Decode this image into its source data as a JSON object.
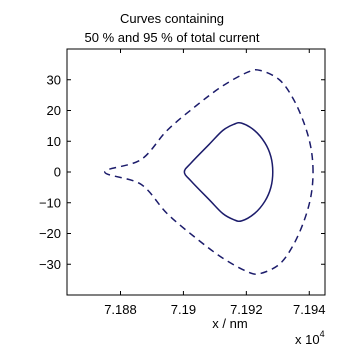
{
  "chart_data": {
    "type": "line",
    "title": [
      "Curves containing",
      "50 % and 95 % of total current"
    ],
    "xlabel": "x / nm",
    "ylabel": "",
    "x_multiplier_text": "x 10",
    "x_multiplier_exp": "4",
    "x_units_scale": 10000,
    "xlim": [
      7.1863,
      7.1945
    ],
    "ylim": [
      -40,
      40
    ],
    "xticks": [
      7.188,
      7.19,
      7.192,
      7.194
    ],
    "xtick_labels": [
      "7.188",
      "7.19",
      "7.192",
      "7.194"
    ],
    "yticks": [
      30,
      20,
      10,
      0,
      -10,
      -20,
      -30
    ],
    "ytick_labels": [
      "30",
      "20",
      "10",
      "0",
      "−10",
      "−20",
      "−30"
    ],
    "grid": false,
    "legend": "none",
    "colors": {
      "series": "#1c1c6b",
      "frame": "#000000"
    },
    "series": [
      {
        "style": "solid",
        "points": [
          [
            7.19284,
            0
          ],
          [
            7.19278,
            5
          ],
          [
            7.19259,
            9.5
          ],
          [
            7.19226,
            13.5
          ],
          [
            7.19185,
            15.9
          ],
          [
            7.1916,
            15.5
          ],
          [
            7.19125,
            13.5
          ],
          [
            7.19082,
            9
          ],
          [
            7.19025,
            3
          ],
          [
            7.19003,
            0
          ],
          [
            7.19025,
            -3
          ],
          [
            7.19082,
            -9
          ],
          [
            7.19125,
            -13.5
          ],
          [
            7.1916,
            -15.5
          ],
          [
            7.19185,
            -15.9
          ],
          [
            7.19226,
            -13.5
          ],
          [
            7.19259,
            -9.5
          ],
          [
            7.19278,
            -5
          ],
          [
            7.19284,
            0
          ]
        ]
      },
      {
        "style": "dashed",
        "points": [
          [
            7.19412,
            0
          ],
          [
            7.19405,
            8
          ],
          [
            7.19383,
            16
          ],
          [
            7.19348,
            24
          ],
          [
            7.19305,
            30
          ],
          [
            7.19245,
            33
          ],
          [
            7.19205,
            32.5
          ],
          [
            7.19125,
            28
          ],
          [
            7.1904,
            21.5
          ],
          [
            7.18948,
            13.5
          ],
          [
            7.18865,
            4
          ],
          [
            7.1875,
            0
          ],
          [
            7.18865,
            -4
          ],
          [
            7.18948,
            -13.5
          ],
          [
            7.1904,
            -21.5
          ],
          [
            7.19125,
            -28
          ],
          [
            7.19205,
            -32.5
          ],
          [
            7.19245,
            -33
          ],
          [
            7.19305,
            -30
          ],
          [
            7.19348,
            -24
          ],
          [
            7.19383,
            -16
          ],
          [
            7.19405,
            -8
          ],
          [
            7.19412,
            0
          ]
        ]
      }
    ]
  }
}
